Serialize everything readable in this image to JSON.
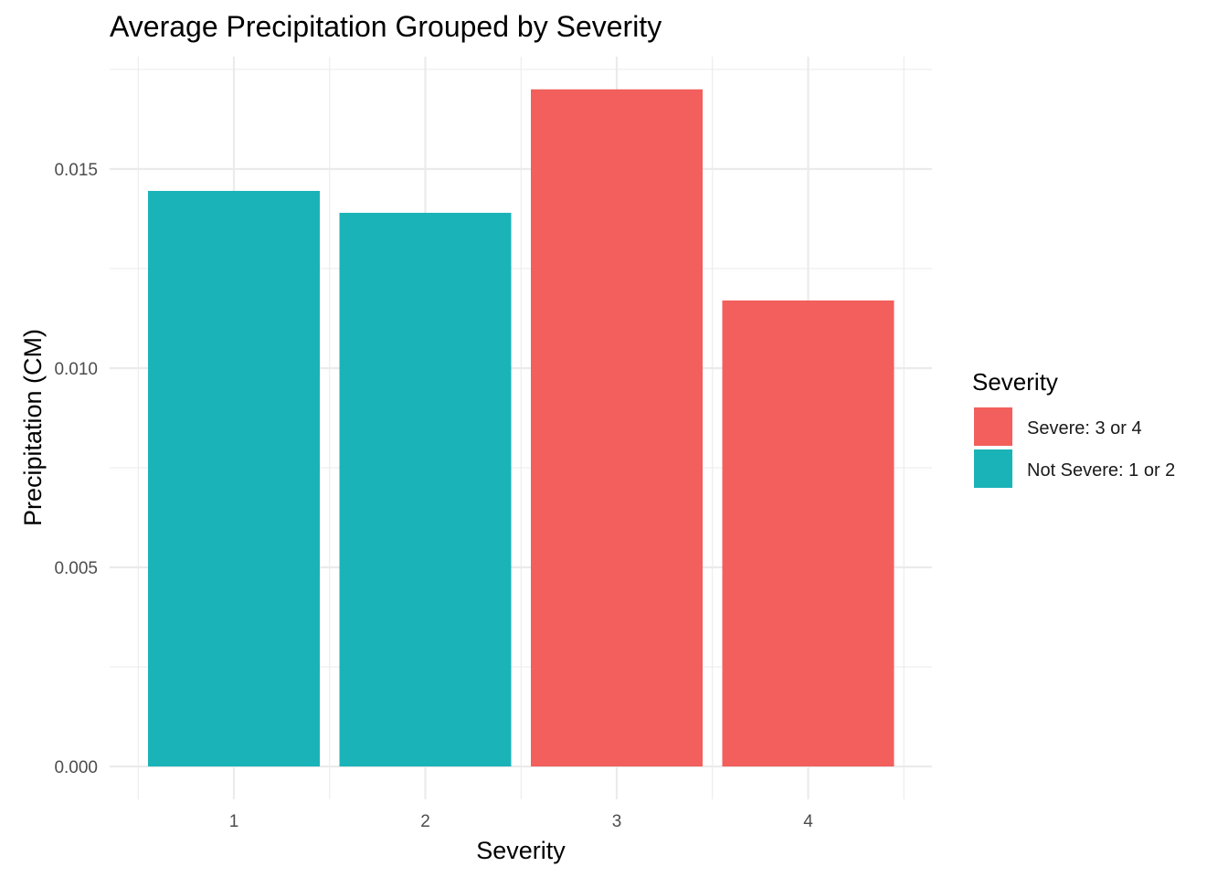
{
  "chart_data": {
    "type": "bar",
    "title": "Average Precipitation Grouped by Severity",
    "xlabel": "Severity",
    "ylabel": "Precipitation (CM)",
    "categories": [
      "1",
      "2",
      "3",
      "4"
    ],
    "values": [
      0.01445,
      0.0139,
      0.017,
      0.0117
    ],
    "groups": [
      "Not Severe: 1 or 2",
      "Not Severe: 1 or 2",
      "Severe: 3 or 4",
      "Severe: 3 or 4"
    ],
    "ylim": [
      0,
      0.0175
    ],
    "yticks": [
      0.0,
      0.005,
      0.01,
      0.015
    ],
    "ytick_labels": [
      "0.000",
      "0.005",
      "0.010",
      "0.015"
    ],
    "grid": true,
    "legend": {
      "title": "Severity",
      "placement": "right",
      "entries": [
        {
          "label": "Severe: 3 or 4",
          "color": "#F25F5C"
        },
        {
          "label": "Not Severe: 1 or 2",
          "color": "#1AB3B8"
        }
      ]
    }
  }
}
